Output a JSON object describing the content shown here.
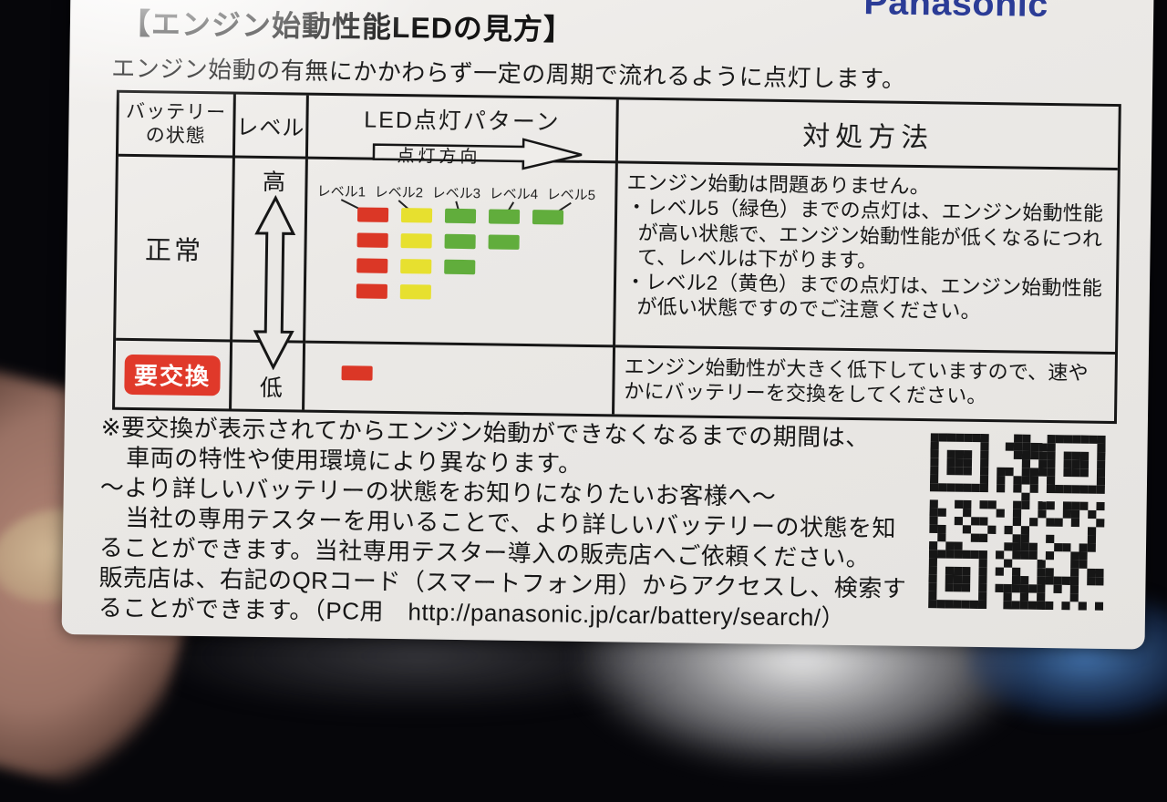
{
  "logo": "Panasonic",
  "title": "【エンジン始動性能LEDの見方】",
  "subtitle": "エンジン始動の有無にかかわらず一定の周期で流れるように点灯します。",
  "table": {
    "headers": {
      "battery_state_line1": "バッテリー",
      "battery_state_line2": "の状態",
      "level": "レベル",
      "led_pattern": "LED点灯パターン",
      "lighting_direction": "点灯方向",
      "action": "対処方法"
    },
    "normal_row": {
      "status": "正常",
      "level_high": "高",
      "level_low": "低",
      "action_lines": [
        "エンジン始動は問題ありません。",
        "・レベル5（緑色）までの点灯は、エンジン始動性能が高い状態で、エンジン始動性能が低くなるにつれて、レベルは下がります。",
        "・レベル2（黄色）までの点灯は、エンジン始動性能が低い状態ですのでご注意ください。"
      ]
    },
    "replace_row": {
      "status": "要交換",
      "action": "エンジン始動性が大きく低下していますので、速やかにバッテリーを交換をしてください。"
    }
  },
  "led": {
    "labels": [
      "レベル1",
      "レベル2",
      "レベル3",
      "レベル4",
      "レベル5"
    ],
    "rows": [
      [
        "red",
        "yellow",
        "green",
        "green",
        "green"
      ],
      [
        "red",
        "yellow",
        "green",
        "green"
      ],
      [
        "red",
        "yellow",
        "green"
      ],
      [
        "red",
        "yellow"
      ]
    ],
    "replace_bars": [
      "red"
    ],
    "colors": {
      "red": "#db3726",
      "yellow": "#e7e02f",
      "green": "#61ad3c"
    }
  },
  "footer": {
    "lines": [
      "※要交換が表示されてからエンジン始動ができなくなるまでの期間は、",
      "車両の特性や使用環境により異なります。",
      "〜より詳しいバッテリーの状態をお知りになりたいお客様へ〜",
      "当社の専用テスターを用いることで、より詳しいバッテリーの状態を知",
      "ることができます。当社専用テスター導入の販売店へご依頼ください。",
      "販売店は、右記のQRコード（スマートフォン用）からアクセスし、検索す",
      "ることができます。（PC用　http://panasonic.jp/car/battery/search/）"
    ],
    "pc_url": "http://panasonic.jp/car/battery/search/"
  },
  "colors": {
    "logo_blue": "#2b3c96",
    "badge_red": "#e0392a",
    "card_background": "#ebe9e6",
    "table_line": "#161616"
  }
}
